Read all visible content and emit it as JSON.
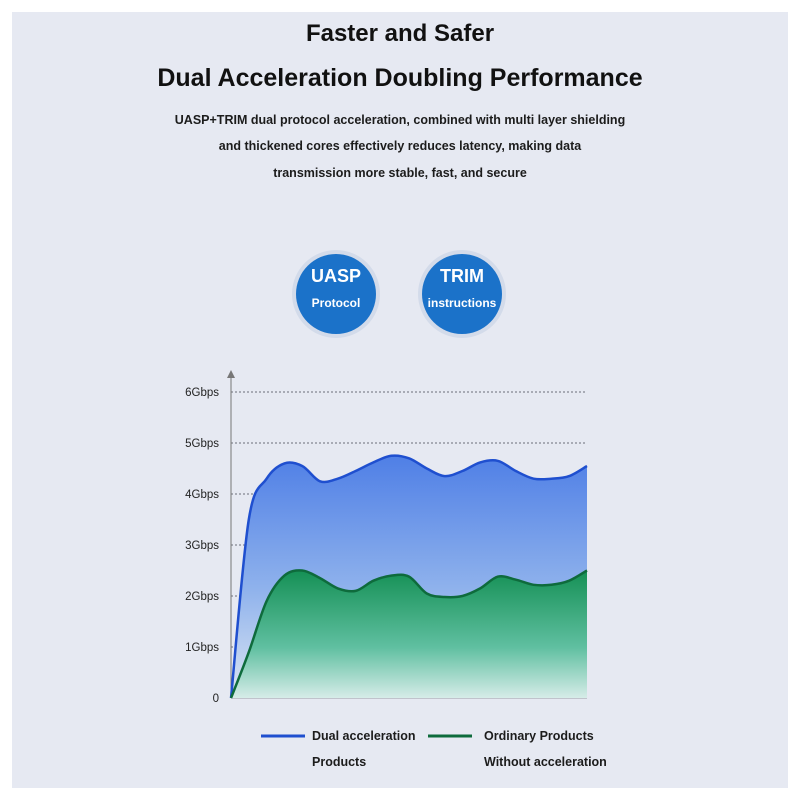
{
  "header": {
    "title": "Faster and Safer",
    "subtitle": "Dual Acceleration Doubling Performance",
    "description": [
      "UASP+TRIM dual protocol acceleration, combined with multi layer shielding",
      "and thickened cores effectively reduces latency, making data",
      "transmission more stable, fast, and secure"
    ]
  },
  "badges": [
    {
      "title": "UASP",
      "subtitle": "Protocol"
    },
    {
      "title": "TRIM",
      "subtitle": "instructions"
    }
  ],
  "colors": {
    "accent_blue": "#1b72c9",
    "dual_line": "#1f4fcf",
    "ordinary_line": "#0e6b3c"
  },
  "chart_data": {
    "type": "area",
    "x": [
      0,
      0.05,
      0.1,
      0.15,
      0.2,
      0.25,
      0.3,
      0.35,
      0.4,
      0.45,
      0.5,
      0.55,
      0.6,
      0.65,
      0.7,
      0.75,
      0.8,
      0.85,
      0.9,
      0.95,
      1
    ],
    "xlim": [
      0,
      1
    ],
    "ylim": [
      0,
      6
    ],
    "yticks": [
      0,
      1,
      2,
      3,
      4,
      5,
      6
    ],
    "ytick_labels": [
      "0",
      "1Gbps",
      "2Gbps",
      "3Gbps",
      "4Gbps",
      "5Gbps",
      "6Gbps"
    ],
    "grid": "horizontal dashed",
    "legend_position": "bottom",
    "series": [
      {
        "name": "Dual acceleration Products",
        "legend_lines": [
          "Dual acceleration",
          "Products"
        ],
        "values": [
          0,
          3.5,
          4.3,
          4.6,
          4.55,
          4.25,
          4.3,
          4.45,
          4.62,
          4.75,
          4.7,
          4.5,
          4.35,
          4.45,
          4.62,
          4.65,
          4.45,
          4.3,
          4.3,
          4.35,
          4.55
        ]
      },
      {
        "name": "Ordinary Products Without acceleration",
        "legend_lines": [
          "Ordinary Products",
          "Without acceleration"
        ],
        "values": [
          0,
          0.9,
          1.9,
          2.4,
          2.5,
          2.35,
          2.15,
          2.1,
          2.3,
          2.4,
          2.38,
          2.05,
          1.98,
          2.0,
          2.15,
          2.38,
          2.32,
          2.22,
          2.22,
          2.3,
          2.5
        ]
      }
    ]
  }
}
